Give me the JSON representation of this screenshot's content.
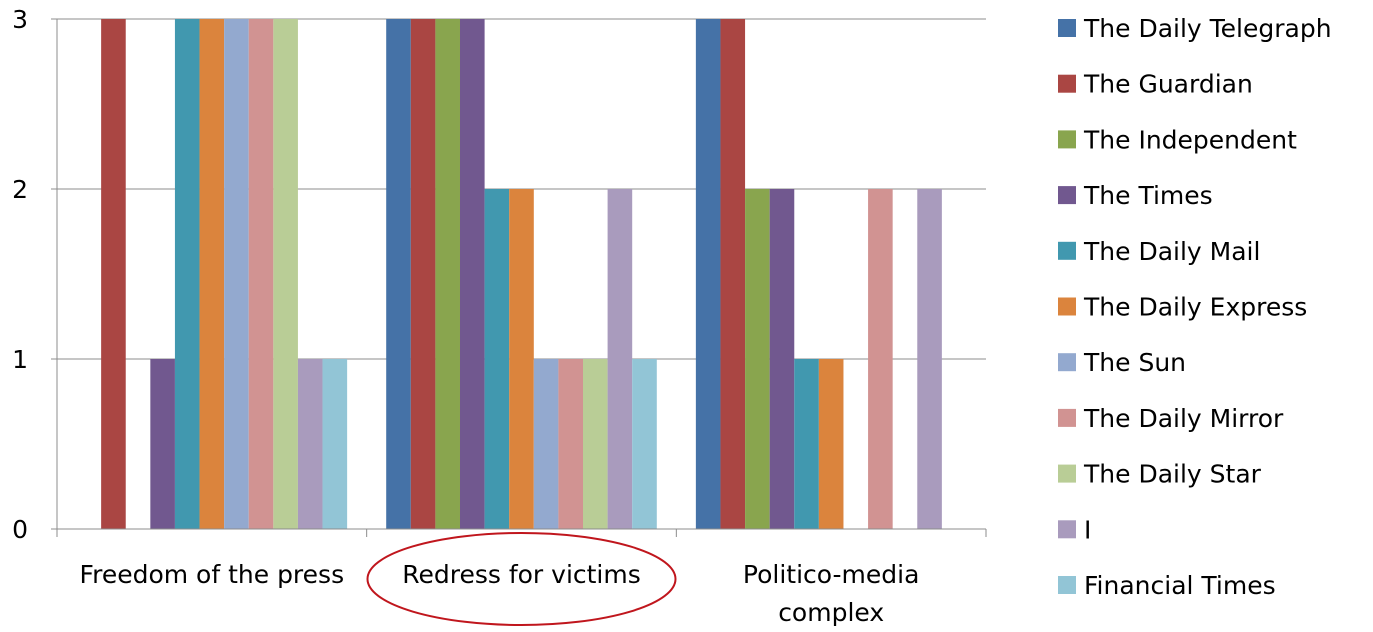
{
  "chart_data": {
    "type": "bar",
    "title": "",
    "xlabel": "",
    "ylabel": "",
    "ylim": [
      0,
      3
    ],
    "yticks": [
      0,
      1,
      2,
      3
    ],
    "grid": true,
    "legend_position": "right",
    "categories": [
      [
        "Freedom of the press"
      ],
      [
        "Redress for victims"
      ],
      [
        "Politico-media",
        "complex"
      ]
    ],
    "highlighted_category_index": 1,
    "highlight_color": "#c0161d",
    "series": [
      {
        "name": "The Daily Telegraph",
        "color": "#4572a7",
        "values": [
          0,
          3,
          3
        ]
      },
      {
        "name": "The Guardian",
        "color": "#aa4643",
        "values": [
          3,
          3,
          3
        ]
      },
      {
        "name": "The Independent",
        "color": "#89a54e",
        "values": [
          0,
          3,
          2
        ]
      },
      {
        "name": "The Times",
        "color": "#71588f",
        "values": [
          1,
          3,
          2
        ]
      },
      {
        "name": "The Daily Mail",
        "color": "#4198af",
        "values": [
          3,
          2,
          1
        ]
      },
      {
        "name": "The Daily Express",
        "color": "#db843d",
        "values": [
          3,
          2,
          1
        ]
      },
      {
        "name": "The Sun",
        "color": "#93a9cf",
        "values": [
          3,
          1,
          0
        ]
      },
      {
        "name": "The Daily Mirror",
        "color": "#d19392",
        "values": [
          3,
          1,
          2
        ]
      },
      {
        "name": "The Daily Star",
        "color": "#b9cd96",
        "values": [
          3,
          1,
          0
        ]
      },
      {
        "name": "I",
        "color": "#a99bbd",
        "values": [
          1,
          2,
          2
        ]
      },
      {
        "name": "Financial Times",
        "color": "#92c5d6",
        "values": [
          1,
          1,
          0
        ]
      }
    ]
  }
}
